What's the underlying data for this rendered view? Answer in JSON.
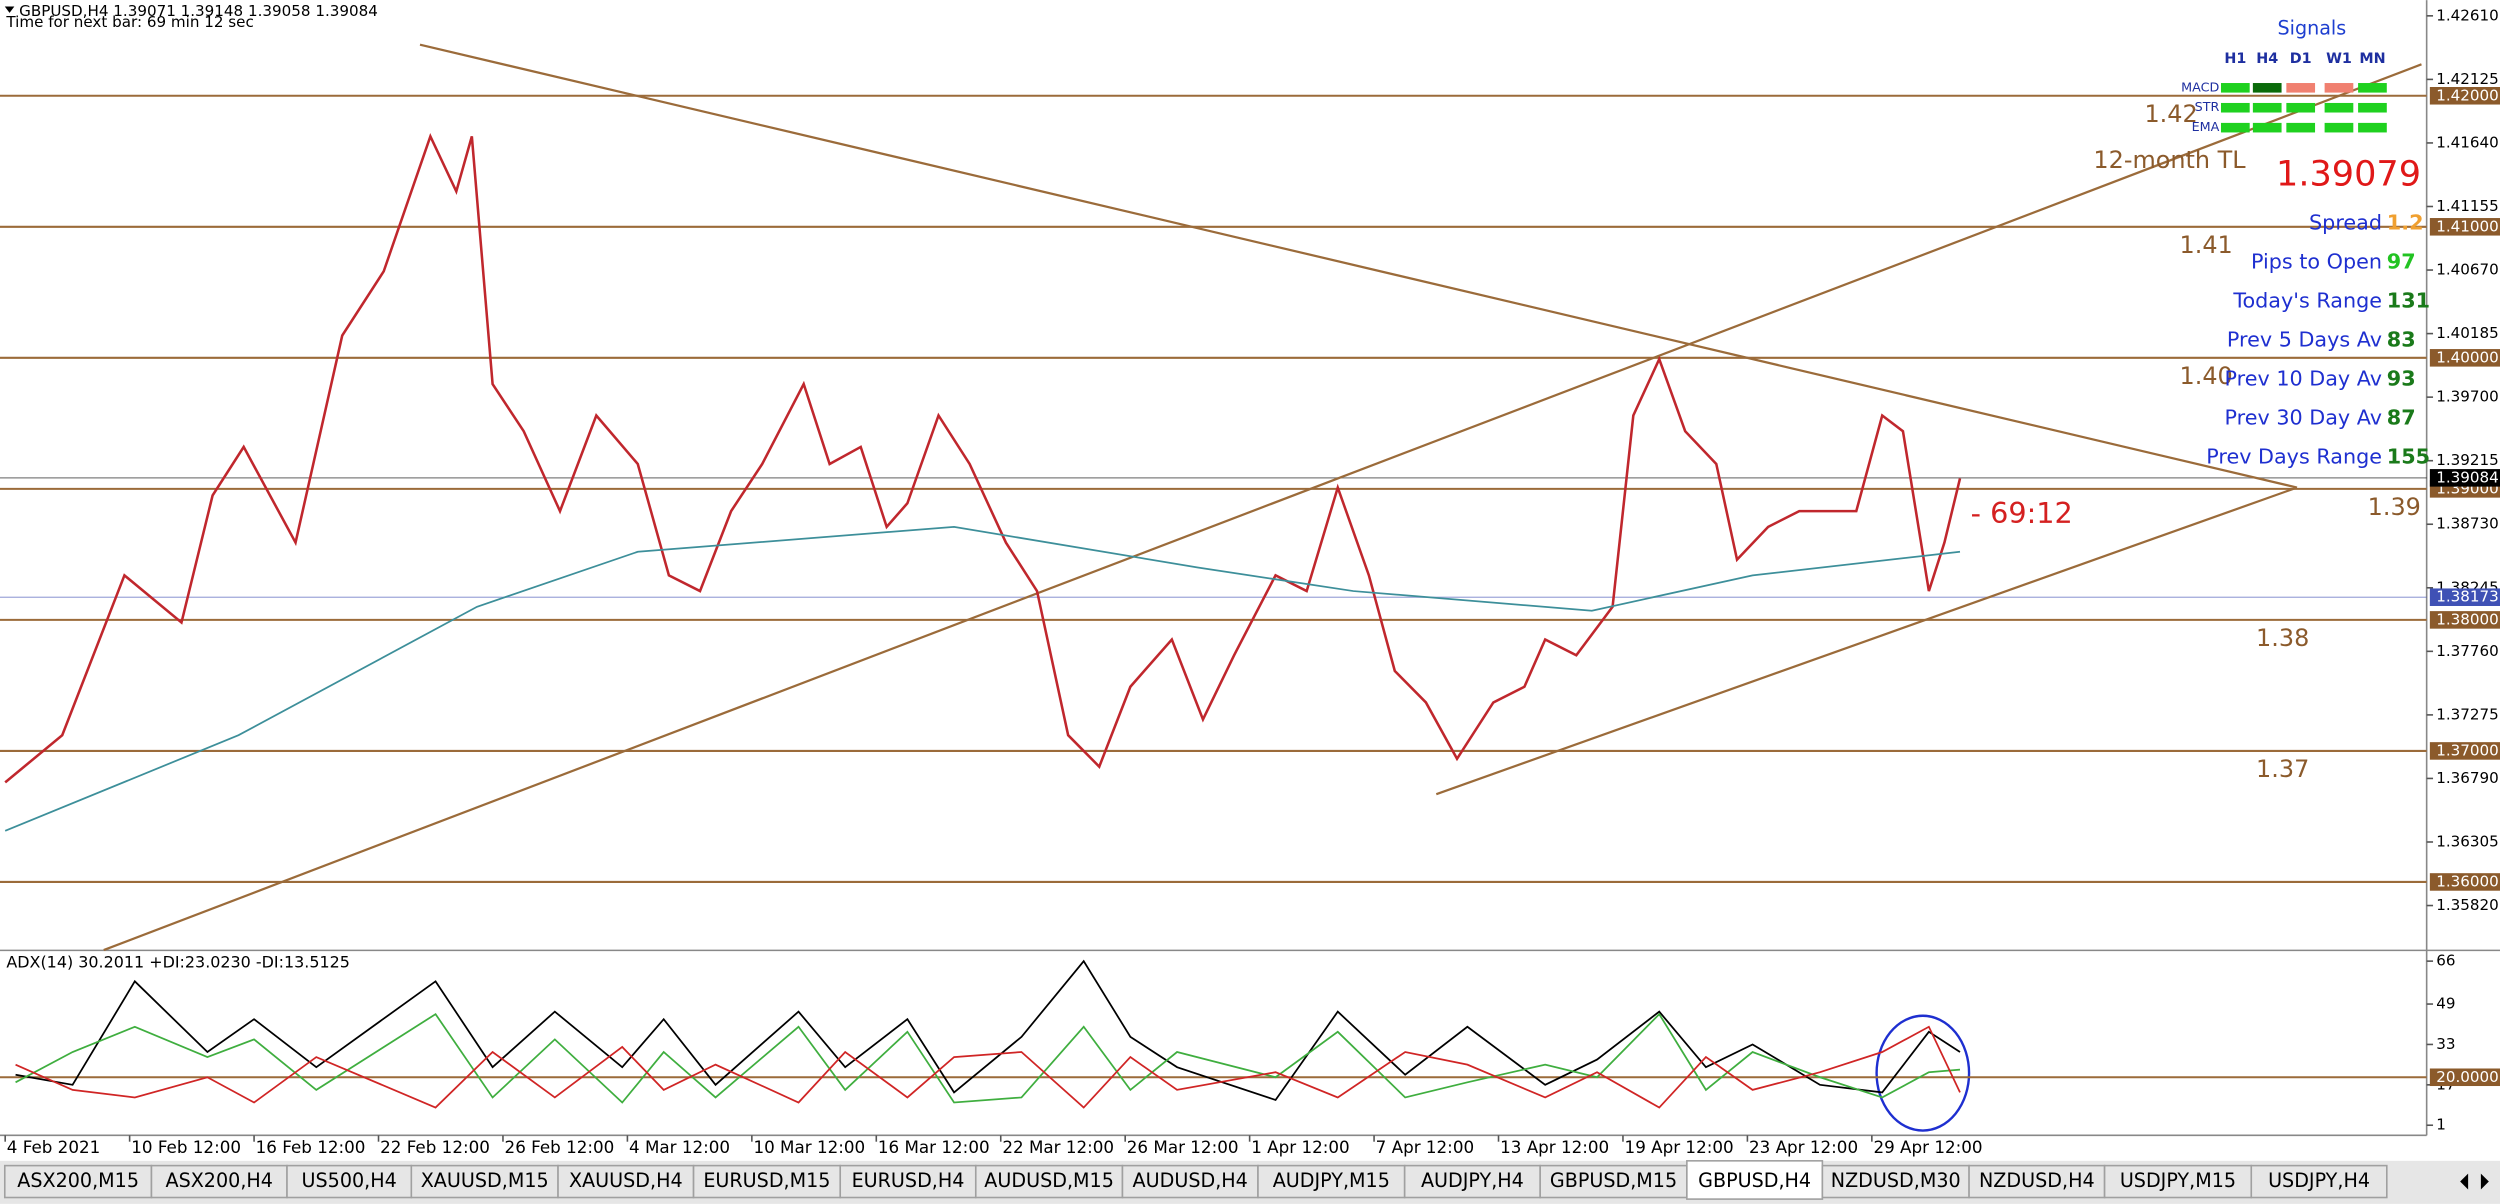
{
  "header": {
    "symbol_info": "GBPUSD,H4  1.39071 1.39148 1.39058 1.39084",
    "timer": "Time for next bar: 69 min 12 sec"
  },
  "chart_data": [
    {
      "type": "line",
      "xlim": [
        -1,
        467
      ],
      "ylim": [
        1.3549,
        1.4273
      ],
      "yticks": [
        {
          "value": 1.4261,
          "label": "1.42610"
        },
        {
          "value": 1.42125,
          "label": "1.42125"
        },
        {
          "value": 1.4164,
          "label": "1.41640"
        },
        {
          "value": 1.41155,
          "label": "1.41155"
        },
        {
          "value": 1.4067,
          "label": "1.40670"
        },
        {
          "value": 1.40185,
          "label": "1.40185"
        },
        {
          "value": 1.397,
          "label": "1.39700"
        },
        {
          "value": 1.39215,
          "label": "1.39215"
        },
        {
          "value": 1.3873,
          "label": "1.38730"
        },
        {
          "value": 1.38245,
          "label": "1.38245"
        },
        {
          "value": 1.3776,
          "label": "1.37760"
        },
        {
          "value": 1.37275,
          "label": "1.37275"
        },
        {
          "value": 1.3679,
          "label": "1.36790"
        },
        {
          "value": 1.36305,
          "label": "1.36305"
        },
        {
          "value": 1.3582,
          "label": "1.35820"
        }
      ],
      "xticks": [
        {
          "value": 0,
          "label": "4 Feb 2021"
        },
        {
          "value": 24,
          "label": "10 Feb 12:00"
        },
        {
          "value": 48,
          "label": "16 Feb 12:00"
        },
        {
          "value": 72,
          "label": "22 Feb 12:00"
        },
        {
          "value": 96,
          "label": "26 Feb 12:00"
        },
        {
          "value": 120,
          "label": "4 Mar 12:00"
        },
        {
          "value": 144,
          "label": "10 Mar 12:00"
        },
        {
          "value": 168,
          "label": "16 Mar 12:00"
        },
        {
          "value": 192,
          "label": "22 Mar 12:00"
        },
        {
          "value": 216,
          "label": "26 Mar 12:00"
        },
        {
          "value": 240,
          "label": "1 Apr 12:00"
        },
        {
          "value": 264,
          "label": "7 Apr 12:00"
        },
        {
          "value": 288,
          "label": "13 Apr 12:00"
        },
        {
          "value": 312,
          "label": "19 Apr 12:00"
        },
        {
          "value": 336,
          "label": "23 Apr 12:00"
        },
        {
          "value": 360,
          "label": "29 Apr 12:00"
        }
      ],
      "series": [
        {
          "color": "#c0272d",
          "x": [
            0,
            11,
            23,
            34,
            40,
            46,
            56,
            65,
            73,
            82,
            87,
            90,
            94,
            100,
            107,
            114,
            122,
            128,
            134,
            140,
            146,
            154,
            159,
            165,
            170,
            174,
            180,
            186,
            193,
            199,
            205,
            211,
            217,
            225,
            231,
            237,
            245,
            251,
            257,
            263,
            268,
            274,
            280,
            287,
            293,
            297,
            303,
            310,
            314,
            319,
            324,
            330,
            334,
            340,
            346,
            353,
            357,
            362,
            366,
            371,
            374,
            377
          ],
          "values": [
            1.3676,
            1.3712,
            1.3834,
            1.3798,
            1.3895,
            1.3932,
            1.3859,
            1.4017,
            1.4066,
            1.4169,
            1.4127,
            1.4169,
            1.398,
            1.3944,
            1.3883,
            1.3956,
            1.3919,
            1.3834,
            1.3822,
            1.3883,
            1.3919,
            1.398,
            1.3919,
            1.3932,
            1.3871,
            1.3889,
            1.3956,
            1.3919,
            1.3859,
            1.3822,
            1.3712,
            1.3688,
            1.3749,
            1.3785,
            1.3724,
            1.3773,
            1.3834,
            1.3822,
            1.3901,
            1.3834,
            1.3761,
            1.3737,
            1.3694,
            1.3737,
            1.3749,
            1.3785,
            1.3773,
            1.381,
            1.3956,
            1.3999,
            1.3944,
            1.3919,
            1.3846,
            1.3871,
            1.3883,
            1.3883,
            1.3883,
            1.3956,
            1.3944,
            1.3822,
            1.3859,
            1.3908
          ]
        },
        {
          "color": "#3d8f9a",
          "x": [
            0,
            45,
            91,
            122,
            183,
            230,
            260,
            306,
            337,
            377
          ],
          "values": [
            1.3639,
            1.3712,
            1.381,
            1.3852,
            1.3871,
            1.384,
            1.3822,
            1.3807,
            1.3834,
            1.3852
          ]
        }
      ],
      "levels": [
        {
          "value": 1.42,
          "label": "1.42",
          "axis_label": "1.42000"
        },
        {
          "value": 1.41,
          "label": "1.41",
          "axis_label": "1.41000"
        },
        {
          "value": 1.4,
          "label": "1.40",
          "axis_label": "1.40000"
        },
        {
          "value": 1.39,
          "label": "1.39",
          "axis_label": "1.39000"
        },
        {
          "value": 1.38,
          "label": "1.38",
          "axis_label": "1.38000"
        },
        {
          "value": 1.37,
          "label": "1.37",
          "axis_label": "1.37000"
        },
        {
          "value": 1.36,
          "axis_label": "1.36000"
        }
      ],
      "price_lines": [
        {
          "value": 1.39084,
          "label": "1.39084",
          "color": "#000000"
        },
        {
          "value": 1.38173,
          "label": "1.38173",
          "color": "#3f51b5"
        }
      ],
      "trendlines": [
        {
          "x": [
            80,
            442
          ],
          "y": [
            1.4239,
            1.3901
          ]
        },
        {
          "x": [
            19,
            466
          ],
          "y": [
            1.3548,
            1.4224
          ],
          "label": "12-month TL"
        },
        {
          "x": [
            276,
            442
          ],
          "y": [
            1.3667,
            1.3901
          ]
        }
      ],
      "countdown": "- 69:12"
    },
    {
      "type": "line",
      "title": "ADX(14) 30.2011 +DI:23.0230 -DI:13.5125",
      "ylim": [
        -3,
        69
      ],
      "yticks": [
        66,
        49,
        33,
        17,
        1
      ],
      "level": {
        "value": 20,
        "label": "20.0000"
      },
      "x": [
        2,
        13,
        25,
        39,
        48,
        60,
        83,
        94,
        106,
        119,
        127,
        137,
        153,
        162,
        174,
        183,
        196,
        208,
        217,
        226,
        245,
        257,
        270,
        282,
        297,
        307,
        319,
        328,
        337,
        350,
        362,
        371,
        377
      ],
      "series": [
        {
          "color": "#000000",
          "values": [
            21,
            17,
            58,
            30,
            43,
            24,
            58,
            24,
            46,
            24,
            43,
            17,
            46,
            24,
            43,
            14,
            36,
            66,
            36,
            24,
            11,
            46,
            21,
            40,
            17,
            27,
            46,
            24,
            33,
            17,
            14,
            38,
            30
          ]
        },
        {
          "color": "#3fae3f",
          "values": [
            18,
            30,
            40,
            28,
            35,
            15,
            45,
            12,
            35,
            10,
            30,
            12,
            40,
            15,
            38,
            10,
            12,
            40,
            15,
            30,
            20,
            38,
            12,
            18,
            25,
            20,
            45,
            15,
            30,
            20,
            12,
            22,
            23
          ]
        },
        {
          "color": "#d02525",
          "values": [
            25,
            15,
            12,
            20,
            10,
            28,
            8,
            30,
            12,
            32,
            15,
            25,
            10,
            30,
            12,
            28,
            30,
            8,
            28,
            15,
            22,
            12,
            30,
            25,
            12,
            22,
            8,
            28,
            15,
            22,
            30,
            40,
            14
          ]
        }
      ]
    }
  ],
  "signals": {
    "title": "Signals",
    "columns": [
      "H1",
      "H4",
      "D1",
      "W1",
      "MN"
    ],
    "rows": [
      {
        "label": "MACD",
        "colors": [
          "#1fd11f",
          "#0a6b0a",
          "#f08070",
          "#f08070",
          "#1fd11f"
        ]
      },
      {
        "label": "STR",
        "colors": [
          "#1fd11f",
          "#1fd11f",
          "#1fd11f",
          "#1fd11f",
          "#1fd11f"
        ]
      },
      {
        "label": "EMA",
        "colors": [
          "#1fd11f",
          "#1fd11f",
          "#1fd11f",
          "#1fd11f",
          "#1fd11f"
        ]
      }
    ],
    "price": 1.39079,
    "stats": [
      {
        "label": "Spread",
        "value": 1.2,
        "color": "#f0a030"
      },
      {
        "label": "Pips to Open",
        "value": 97,
        "color": "#22c322"
      },
      {
        "label": "Today's Range",
        "value": 131,
        "color": "#1a7a1a"
      },
      {
        "label": "Prev 5 Days Av",
        "value": 83,
        "color": "#1a7a1a"
      },
      {
        "label": "Prev 10 Day Av",
        "value": 93,
        "color": "#1a7a1a"
      },
      {
        "label": "Prev 30 Day Av",
        "value": 87,
        "color": "#1a7a1a"
      },
      {
        "label": "Prev Days Range",
        "value": 155,
        "color": "#1a7a1a"
      }
    ]
  },
  "tabs": {
    "items": [
      "ASX200,M15",
      "ASX200,H4",
      "US500,H4",
      "XAUUSD,M15",
      "XAUUSD,H4",
      "EURUSD,M15",
      "EURUSD,H4",
      "AUDUSD,M15",
      "AUDUSD,H4",
      "AUDJPY,M15",
      "AUDJPY,H4",
      "GBPUSD,M15",
      "GBPUSD,H4",
      "NZDUSD,M30",
      "NZDUSD,H4",
      "USDJPY,M15",
      "USDJPY,H4"
    ],
    "active": 12
  }
}
